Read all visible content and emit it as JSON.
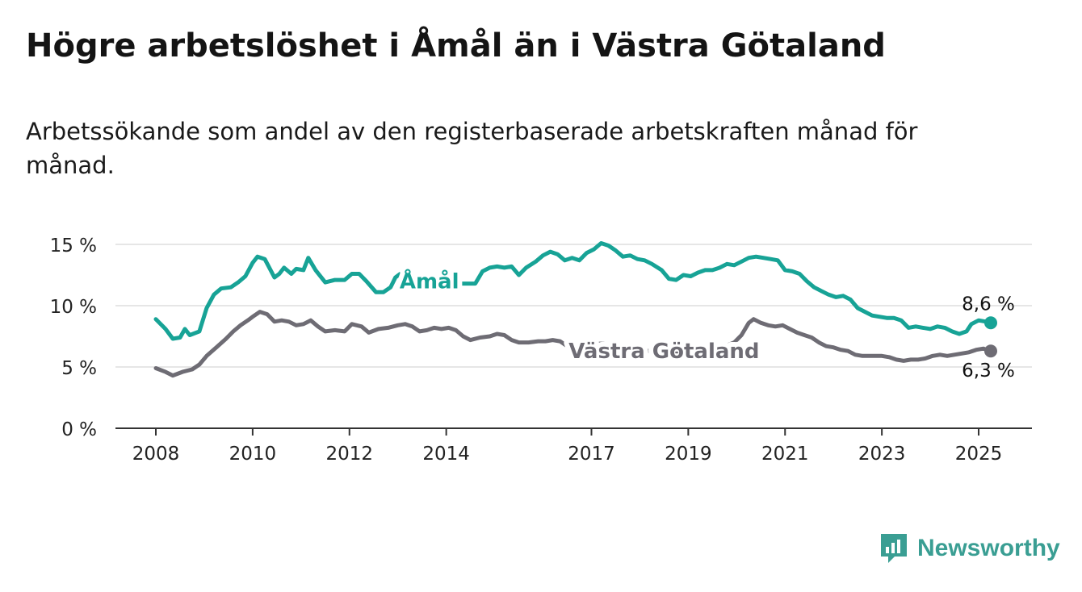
{
  "title": "Högre arbetslöshet i Åmål än i Västra Götaland",
  "subtitle": "Arbetssökande som andel av den registerbaserade arbetskraften månad för månad.",
  "brand": {
    "name": "Newsworthy"
  },
  "colors": {
    "amal": "#17a396",
    "vastra": "#6e6c74",
    "brand": "#3a9e93",
    "grid": "#dddddd",
    "axis": "#333333"
  },
  "chart_data": {
    "type": "line",
    "title": "Högre arbetslöshet i Åmål än i Västra Götaland",
    "subtitle": "Arbetssökande som andel av den registerbaserade arbetskraften månad för månad.",
    "ylim": [
      0,
      15
    ],
    "xlim": [
      2008,
      2025.3
    ],
    "yticks": [
      0,
      5,
      10,
      15
    ],
    "ytick_labels": [
      "0 %",
      "5 %",
      "10 %",
      "15 %"
    ],
    "xticks": [
      2008,
      2010,
      2012,
      2014,
      2017,
      2019,
      2021,
      2023,
      2025
    ],
    "xtick_labels": [
      "2008",
      "2010",
      "2012",
      "2014",
      "2017",
      "2019",
      "2021",
      "2023",
      "2025"
    ],
    "grid": "horizontal",
    "series": [
      {
        "name": "Åmål",
        "color": "#17a396",
        "end_label": "8,6 %",
        "points": [
          [
            2008.0,
            8.9
          ],
          [
            2008.2,
            8.1
          ],
          [
            2008.35,
            7.3
          ],
          [
            2008.5,
            7.4
          ],
          [
            2008.6,
            8.1
          ],
          [
            2008.7,
            7.6
          ],
          [
            2008.9,
            7.9
          ],
          [
            2009.05,
            9.8
          ],
          [
            2009.2,
            10.9
          ],
          [
            2009.35,
            11.4
          ],
          [
            2009.55,
            11.5
          ],
          [
            2009.7,
            11.9
          ],
          [
            2009.85,
            12.4
          ],
          [
            2010.0,
            13.5
          ],
          [
            2010.1,
            14.0
          ],
          [
            2010.25,
            13.8
          ],
          [
            2010.45,
            12.3
          ],
          [
            2010.55,
            12.6
          ],
          [
            2010.65,
            13.1
          ],
          [
            2010.8,
            12.6
          ],
          [
            2010.9,
            13.0
          ],
          [
            2011.05,
            12.9
          ],
          [
            2011.15,
            13.9
          ],
          [
            2011.3,
            12.9
          ],
          [
            2011.5,
            11.9
          ],
          [
            2011.7,
            12.1
          ],
          [
            2011.9,
            12.1
          ],
          [
            2012.05,
            12.6
          ],
          [
            2012.2,
            12.6
          ],
          [
            2012.35,
            12.0
          ],
          [
            2012.55,
            11.1
          ],
          [
            2012.7,
            11.1
          ],
          [
            2012.85,
            11.5
          ],
          [
            2012.95,
            12.3
          ],
          [
            2013.05,
            12.6
          ],
          [
            2013.15,
            12.5
          ],
          [
            2013.3,
            12.5
          ],
          [
            2013.45,
            12.2
          ],
          [
            2013.75,
            11.9
          ],
          [
            2014.0,
            11.8
          ],
          [
            2014.3,
            11.8
          ],
          [
            2014.6,
            11.8
          ],
          [
            2014.75,
            12.8
          ],
          [
            2014.9,
            13.1
          ],
          [
            2015.05,
            13.2
          ],
          [
            2015.2,
            13.1
          ],
          [
            2015.35,
            13.2
          ],
          [
            2015.5,
            12.5
          ],
          [
            2015.65,
            13.1
          ],
          [
            2015.85,
            13.6
          ],
          [
            2016.0,
            14.1
          ],
          [
            2016.15,
            14.4
          ],
          [
            2016.3,
            14.2
          ],
          [
            2016.45,
            13.7
          ],
          [
            2016.6,
            13.9
          ],
          [
            2016.75,
            13.7
          ],
          [
            2016.9,
            14.3
          ],
          [
            2017.05,
            14.6
          ],
          [
            2017.2,
            15.1
          ],
          [
            2017.35,
            14.9
          ],
          [
            2017.5,
            14.5
          ],
          [
            2017.65,
            14.0
          ],
          [
            2017.8,
            14.1
          ],
          [
            2017.95,
            13.8
          ],
          [
            2018.1,
            13.7
          ],
          [
            2018.25,
            13.4
          ],
          [
            2018.45,
            12.9
          ],
          [
            2018.6,
            12.2
          ],
          [
            2018.75,
            12.1
          ],
          [
            2018.9,
            12.5
          ],
          [
            2019.05,
            12.4
          ],
          [
            2019.2,
            12.7
          ],
          [
            2019.35,
            12.9
          ],
          [
            2019.5,
            12.9
          ],
          [
            2019.65,
            13.1
          ],
          [
            2019.8,
            13.4
          ],
          [
            2019.95,
            13.3
          ],
          [
            2020.1,
            13.6
          ],
          [
            2020.25,
            13.9
          ],
          [
            2020.4,
            14.0
          ],
          [
            2020.55,
            13.9
          ],
          [
            2020.7,
            13.8
          ],
          [
            2020.85,
            13.7
          ],
          [
            2021.0,
            12.9
          ],
          [
            2021.15,
            12.8
          ],
          [
            2021.3,
            12.6
          ],
          [
            2021.45,
            12.0
          ],
          [
            2021.6,
            11.5
          ],
          [
            2021.75,
            11.2
          ],
          [
            2021.9,
            10.9
          ],
          [
            2022.05,
            10.7
          ],
          [
            2022.2,
            10.8
          ],
          [
            2022.35,
            10.5
          ],
          [
            2022.5,
            9.8
          ],
          [
            2022.65,
            9.5
          ],
          [
            2022.8,
            9.2
          ],
          [
            2022.95,
            9.1
          ],
          [
            2023.1,
            9.0
          ],
          [
            2023.25,
            9.0
          ],
          [
            2023.4,
            8.8
          ],
          [
            2023.55,
            8.2
          ],
          [
            2023.7,
            8.3
          ],
          [
            2023.85,
            8.2
          ],
          [
            2024.0,
            8.1
          ],
          [
            2024.15,
            8.3
          ],
          [
            2024.3,
            8.2
          ],
          [
            2024.45,
            7.9
          ],
          [
            2024.6,
            7.7
          ],
          [
            2024.75,
            7.9
          ],
          [
            2024.85,
            8.5
          ],
          [
            2025.0,
            8.8
          ],
          [
            2025.15,
            8.7
          ],
          [
            2025.25,
            8.6
          ]
        ]
      },
      {
        "name": "Västra Götaland",
        "color": "#6e6c74",
        "end_label": "6,3 %",
        "points": [
          [
            2008.0,
            4.9
          ],
          [
            2008.2,
            4.6
          ],
          [
            2008.35,
            4.3
          ],
          [
            2008.55,
            4.6
          ],
          [
            2008.75,
            4.8
          ],
          [
            2008.9,
            5.2
          ],
          [
            2009.05,
            5.9
          ],
          [
            2009.25,
            6.6
          ],
          [
            2009.45,
            7.3
          ],
          [
            2009.6,
            7.9
          ],
          [
            2009.75,
            8.4
          ],
          [
            2009.9,
            8.8
          ],
          [
            2010.0,
            9.1
          ],
          [
            2010.15,
            9.5
          ],
          [
            2010.3,
            9.3
          ],
          [
            2010.45,
            8.7
          ],
          [
            2010.6,
            8.8
          ],
          [
            2010.75,
            8.7
          ],
          [
            2010.9,
            8.4
          ],
          [
            2011.05,
            8.5
          ],
          [
            2011.2,
            8.8
          ],
          [
            2011.35,
            8.3
          ],
          [
            2011.5,
            7.9
          ],
          [
            2011.7,
            8.0
          ],
          [
            2011.9,
            7.9
          ],
          [
            2012.05,
            8.5
          ],
          [
            2012.25,
            8.3
          ],
          [
            2012.4,
            7.8
          ],
          [
            2012.6,
            8.1
          ],
          [
            2012.8,
            8.2
          ],
          [
            2013.0,
            8.4
          ],
          [
            2013.15,
            8.5
          ],
          [
            2013.3,
            8.3
          ],
          [
            2013.45,
            7.9
          ],
          [
            2013.6,
            8.0
          ],
          [
            2013.75,
            8.2
          ],
          [
            2013.9,
            8.1
          ],
          [
            2014.05,
            8.2
          ],
          [
            2014.2,
            8.0
          ],
          [
            2014.35,
            7.5
          ],
          [
            2014.5,
            7.2
          ],
          [
            2014.7,
            7.4
          ],
          [
            2014.9,
            7.5
          ],
          [
            2015.05,
            7.7
          ],
          [
            2015.2,
            7.6
          ],
          [
            2015.35,
            7.2
          ],
          [
            2015.5,
            7.0
          ],
          [
            2015.7,
            7.0
          ],
          [
            2015.9,
            7.1
          ],
          [
            2016.05,
            7.1
          ],
          [
            2016.2,
            7.2
          ],
          [
            2016.35,
            7.1
          ],
          [
            2016.5,
            6.7
          ],
          [
            2016.65,
            6.6
          ],
          [
            2016.8,
            6.8
          ],
          [
            2016.95,
            6.8
          ],
          [
            2017.1,
            6.9
          ],
          [
            2017.25,
            6.9
          ],
          [
            2017.4,
            6.7
          ],
          [
            2017.6,
            6.6
          ],
          [
            2017.8,
            6.5
          ],
          [
            2018.0,
            6.4
          ],
          [
            2018.2,
            6.3
          ],
          [
            2018.5,
            6.2
          ],
          [
            2018.8,
            6.2
          ],
          [
            2019.1,
            6.3
          ],
          [
            2019.4,
            6.4
          ],
          [
            2019.7,
            6.6
          ],
          [
            2019.95,
            7.0
          ],
          [
            2020.1,
            7.6
          ],
          [
            2020.25,
            8.6
          ],
          [
            2020.35,
            8.9
          ],
          [
            2020.5,
            8.6
          ],
          [
            2020.65,
            8.4
          ],
          [
            2020.8,
            8.3
          ],
          [
            2020.95,
            8.4
          ],
          [
            2021.1,
            8.1
          ],
          [
            2021.25,
            7.8
          ],
          [
            2021.4,
            7.6
          ],
          [
            2021.55,
            7.4
          ],
          [
            2021.7,
            7.0
          ],
          [
            2021.85,
            6.7
          ],
          [
            2022.0,
            6.6
          ],
          [
            2022.15,
            6.4
          ],
          [
            2022.3,
            6.3
          ],
          [
            2022.45,
            6.0
          ],
          [
            2022.6,
            5.9
          ],
          [
            2022.8,
            5.9
          ],
          [
            2023.0,
            5.9
          ],
          [
            2023.15,
            5.8
          ],
          [
            2023.3,
            5.6
          ],
          [
            2023.45,
            5.5
          ],
          [
            2023.6,
            5.6
          ],
          [
            2023.75,
            5.6
          ],
          [
            2023.9,
            5.7
          ],
          [
            2024.05,
            5.9
          ],
          [
            2024.2,
            6.0
          ],
          [
            2024.35,
            5.9
          ],
          [
            2024.5,
            6.0
          ],
          [
            2024.65,
            6.1
          ],
          [
            2024.8,
            6.2
          ],
          [
            2024.95,
            6.4
          ],
          [
            2025.1,
            6.5
          ],
          [
            2025.25,
            6.3
          ]
        ]
      }
    ],
    "annotations": [
      {
        "text": "Åmål",
        "series": "Åmål",
        "x": 2013.65,
        "y": 12.0
      },
      {
        "text": "Västra Götaland",
        "series": "Västra Götaland",
        "x": 2018.5,
        "y": 6.3
      }
    ]
  }
}
